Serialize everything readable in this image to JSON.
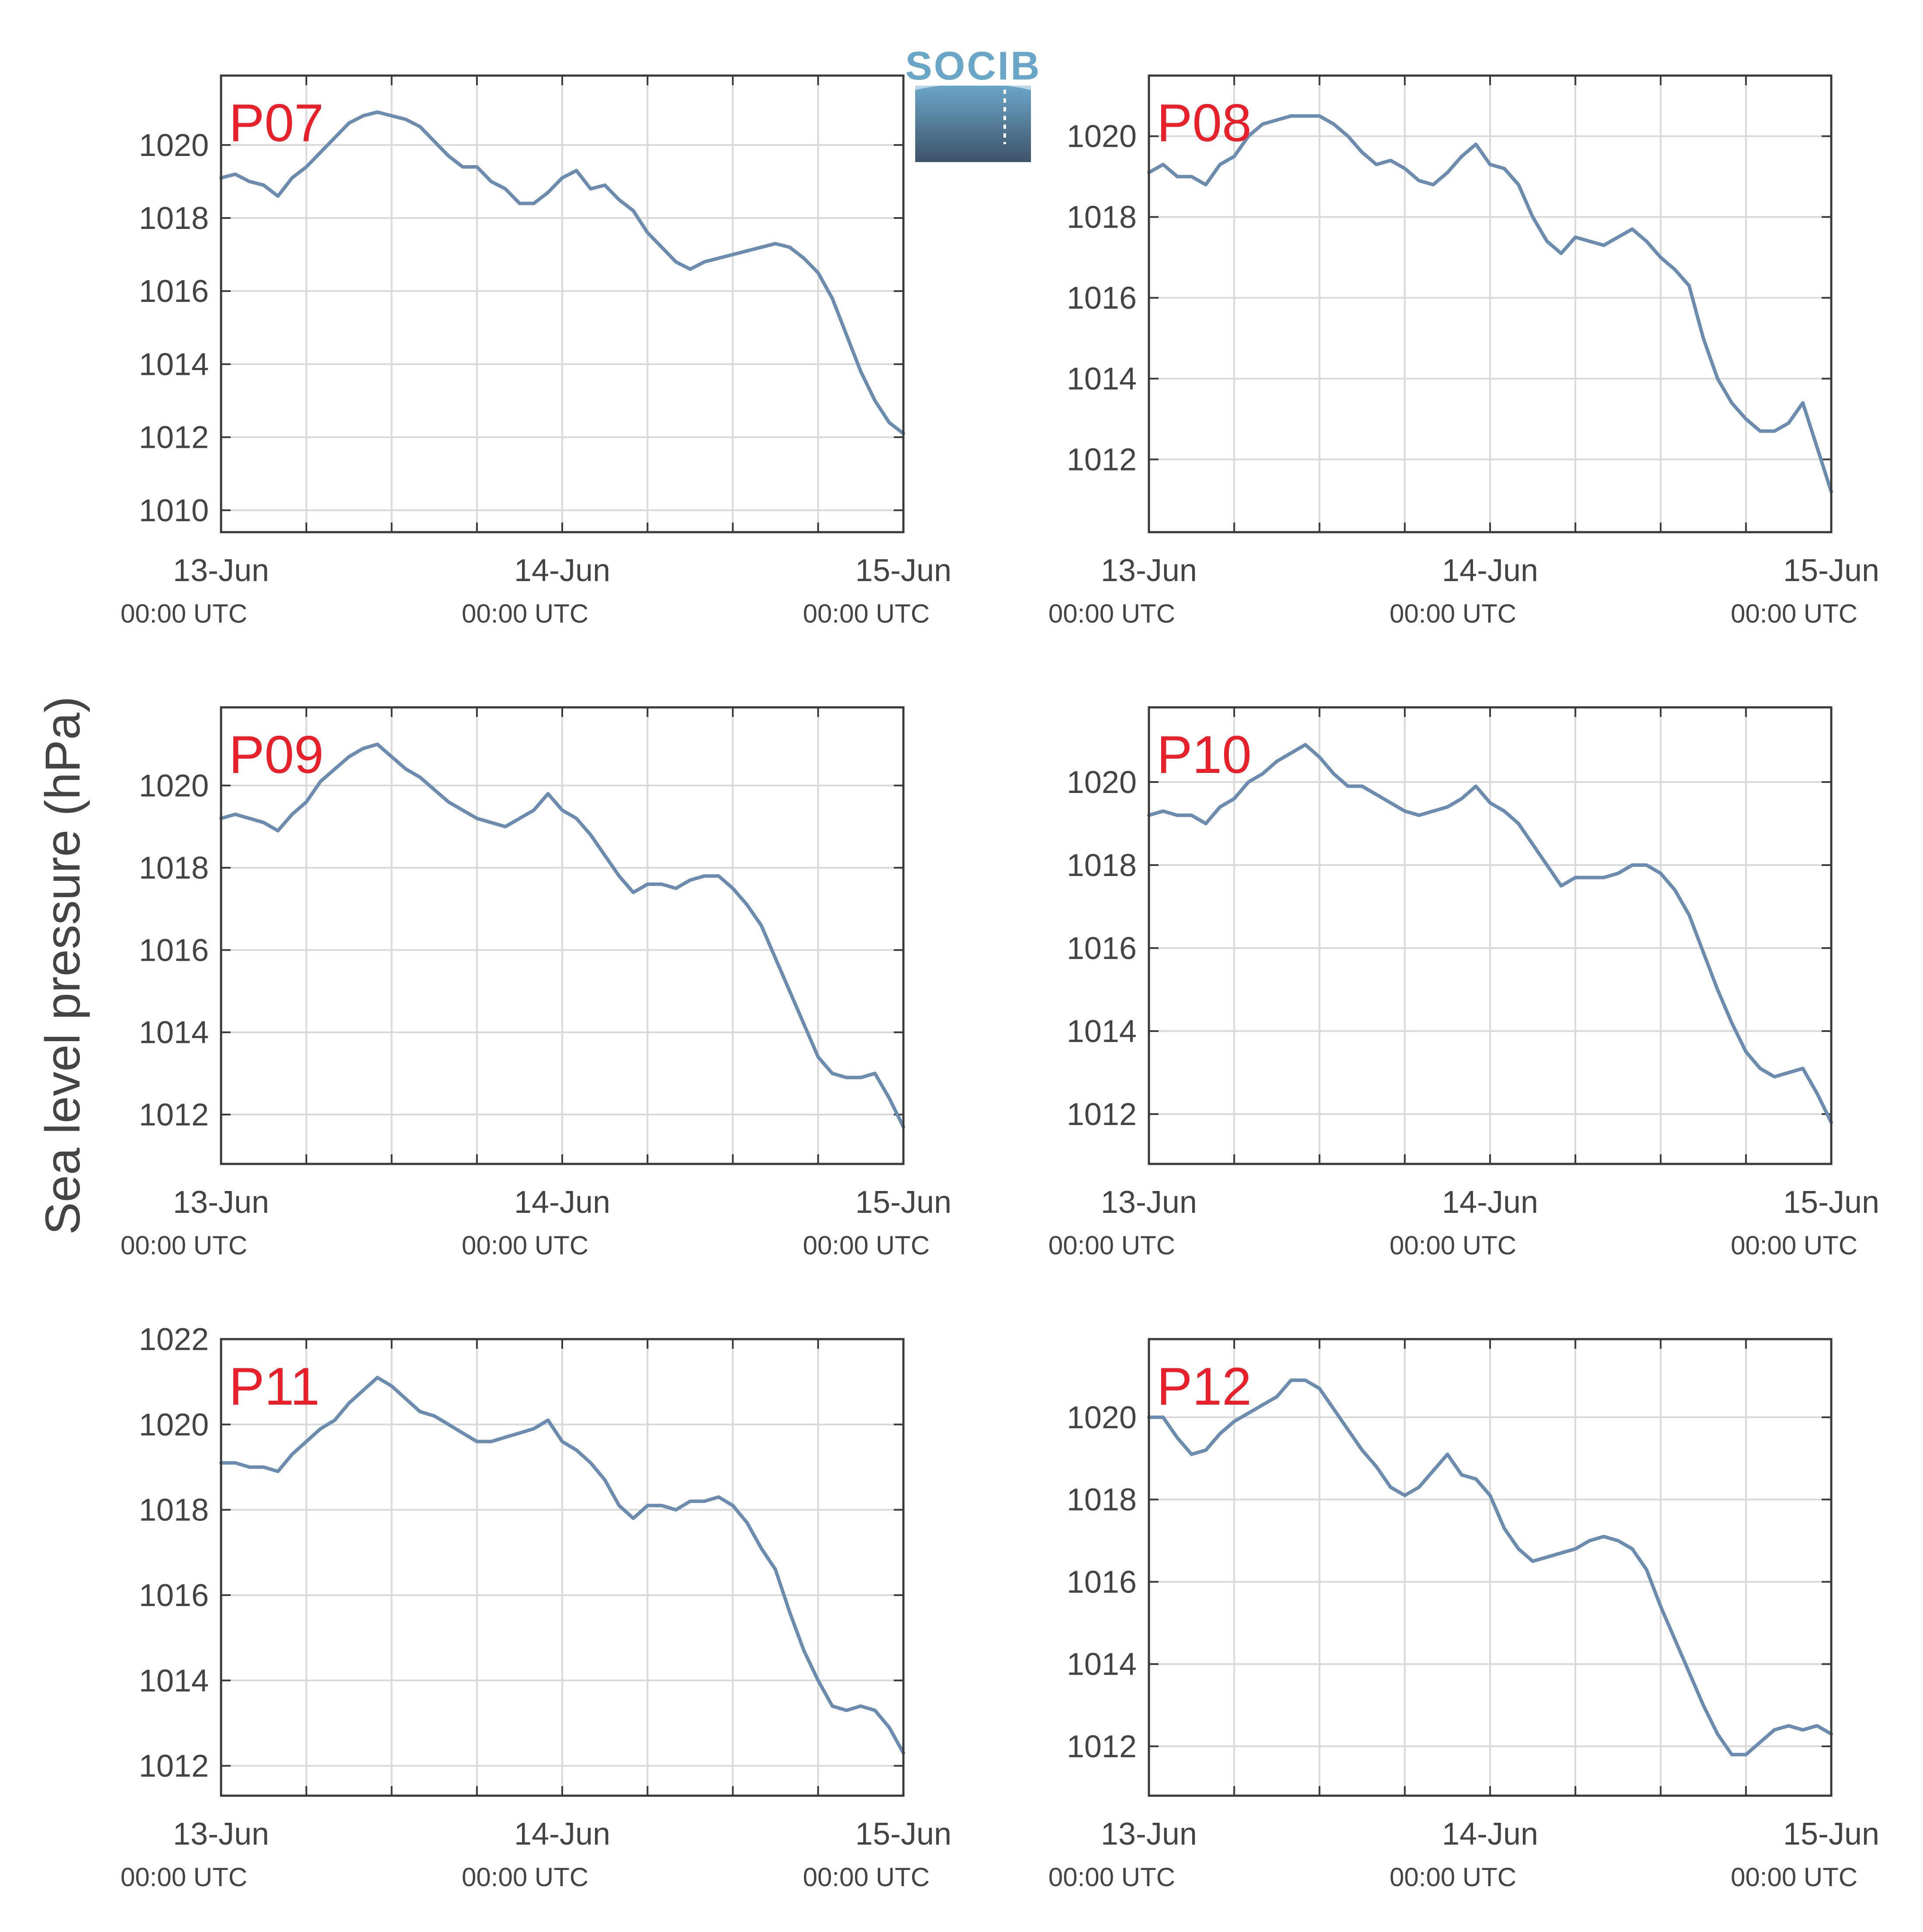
{
  "figure": {
    "ylabel": "Sea level pressure (hPa)",
    "logo_text": "SOCIB",
    "colors": {
      "line": "#6b8caf",
      "panel_label": "#e8202a",
      "axis": "#3a3a3a",
      "grid": "#d9d9d9",
      "text": "#444444",
      "logo_top": "#6aa6c8",
      "logo_bottom": "#3f5369"
    }
  },
  "chart_data": [
    {
      "type": "line",
      "label": "P07",
      "x_ticks": [
        {
          "date": "13-Jun",
          "time": "00:00 UTC"
        },
        {
          "date": "14-Jun",
          "time": "00:00 UTC"
        },
        {
          "date": "15-Jun",
          "time": "00:00 UTC"
        }
      ],
      "x_hours_range": [
        0,
        48
      ],
      "ylim": [
        1009.4,
        1021.9
      ],
      "yticks": [
        1010,
        1012,
        1014,
        1016,
        1018,
        1020
      ],
      "grid": true,
      "series": [
        {
          "x": [
            0,
            1,
            2,
            3,
            4,
            5,
            6,
            7,
            8,
            9,
            10,
            11,
            12,
            13,
            14,
            15,
            16,
            17,
            18,
            19,
            20,
            21,
            22,
            23,
            24,
            25,
            26,
            27,
            28,
            29,
            30,
            31,
            32,
            33,
            34,
            35,
            36,
            37,
            38,
            39,
            40,
            41,
            42,
            43,
            44,
            45,
            46,
            47,
            48
          ],
          "y": [
            1019.1,
            1019.2,
            1019.0,
            1018.9,
            1018.6,
            1019.1,
            1019.4,
            1019.8,
            1020.2,
            1020.6,
            1020.8,
            1020.9,
            1020.8,
            1020.7,
            1020.5,
            1020.1,
            1019.7,
            1019.4,
            1019.4,
            1019.0,
            1018.8,
            1018.4,
            1018.4,
            1018.7,
            1019.1,
            1019.3,
            1018.8,
            1018.9,
            1018.5,
            1018.2,
            1017.6,
            1017.2,
            1016.8,
            1016.6,
            1016.8,
            1016.9,
            1017.0,
            1017.1,
            1017.2,
            1017.3,
            1017.2,
            1016.9,
            1016.5,
            1015.8,
            1014.8,
            1013.8,
            1013.0,
            1012.4,
            1012.1
          ]
        }
      ]
    },
    {
      "type": "line",
      "label": "P08",
      "x_ticks": [
        {
          "date": "13-Jun",
          "time": "00:00 UTC"
        },
        {
          "date": "14-Jun",
          "time": "00:00 UTC"
        },
        {
          "date": "15-Jun",
          "time": "00:00 UTC"
        }
      ],
      "x_hours_range": [
        0,
        48
      ],
      "ylim": [
        1010.2,
        1021.5
      ],
      "yticks": [
        1012,
        1014,
        1016,
        1018,
        1020
      ],
      "grid": true,
      "series": [
        {
          "x": [
            0,
            1,
            2,
            3,
            4,
            5,
            6,
            7,
            8,
            9,
            10,
            11,
            12,
            13,
            14,
            15,
            16,
            17,
            18,
            19,
            20,
            21,
            22,
            23,
            24,
            25,
            26,
            27,
            28,
            29,
            30,
            31,
            32,
            33,
            34,
            35,
            36,
            37,
            38,
            39,
            40,
            41,
            42,
            43,
            44,
            45,
            46,
            47,
            48
          ],
          "y": [
            1019.1,
            1019.3,
            1019.0,
            1019.0,
            1018.8,
            1019.3,
            1019.5,
            1020.0,
            1020.3,
            1020.4,
            1020.5,
            1020.5,
            1020.5,
            1020.3,
            1020.0,
            1019.6,
            1019.3,
            1019.4,
            1019.2,
            1018.9,
            1018.8,
            1019.1,
            1019.5,
            1019.8,
            1019.3,
            1019.2,
            1018.8,
            1018.0,
            1017.4,
            1017.1,
            1017.5,
            1017.4,
            1017.3,
            1017.5,
            1017.7,
            1017.4,
            1017.0,
            1016.7,
            1016.3,
            1015.0,
            1014.0,
            1013.4,
            1013.0,
            1012.7,
            1012.7,
            1012.9,
            1013.4,
            1012.3,
            1011.2
          ]
        }
      ]
    },
    {
      "type": "line",
      "label": "P09",
      "x_ticks": [
        {
          "date": "13-Jun",
          "time": "00:00 UTC"
        },
        {
          "date": "14-Jun",
          "time": "00:00 UTC"
        },
        {
          "date": "15-Jun",
          "time": "00:00 UTC"
        }
      ],
      "x_hours_range": [
        0,
        48
      ],
      "ylim": [
        1010.8,
        1021.9
      ],
      "yticks": [
        1012,
        1014,
        1016,
        1018,
        1020
      ],
      "grid": true,
      "series": [
        {
          "x": [
            0,
            1,
            2,
            3,
            4,
            5,
            6,
            7,
            8,
            9,
            10,
            11,
            12,
            13,
            14,
            15,
            16,
            17,
            18,
            19,
            20,
            21,
            22,
            23,
            24,
            25,
            26,
            27,
            28,
            29,
            30,
            31,
            32,
            33,
            34,
            35,
            36,
            37,
            38,
            39,
            40,
            41,
            42,
            43,
            44,
            45,
            46,
            47,
            48
          ],
          "y": [
            1019.2,
            1019.3,
            1019.2,
            1019.1,
            1018.9,
            1019.3,
            1019.6,
            1020.1,
            1020.4,
            1020.7,
            1020.9,
            1021.0,
            1020.7,
            1020.4,
            1020.2,
            1019.9,
            1019.6,
            1019.4,
            1019.2,
            1019.1,
            1019.0,
            1019.2,
            1019.4,
            1019.8,
            1019.4,
            1019.2,
            1018.8,
            1018.3,
            1017.8,
            1017.4,
            1017.6,
            1017.6,
            1017.5,
            1017.7,
            1017.8,
            1017.8,
            1017.5,
            1017.1,
            1016.6,
            1015.8,
            1015.0,
            1014.2,
            1013.4,
            1013.0,
            1012.9,
            1012.9,
            1013.0,
            1012.4,
            1011.7
          ]
        }
      ]
    },
    {
      "type": "line",
      "label": "P10",
      "x_ticks": [
        {
          "date": "13-Jun",
          "time": "00:00 UTC"
        },
        {
          "date": "14-Jun",
          "time": "00:00 UTC"
        },
        {
          "date": "15-Jun",
          "time": "00:00 UTC"
        }
      ],
      "x_hours_range": [
        0,
        48
      ],
      "ylim": [
        1010.8,
        1021.8
      ],
      "yticks": [
        1012,
        1014,
        1016,
        1018,
        1020
      ],
      "grid": true,
      "series": [
        {
          "x": [
            0,
            1,
            2,
            3,
            4,
            5,
            6,
            7,
            8,
            9,
            10,
            11,
            12,
            13,
            14,
            15,
            16,
            17,
            18,
            19,
            20,
            21,
            22,
            23,
            24,
            25,
            26,
            27,
            28,
            29,
            30,
            31,
            32,
            33,
            34,
            35,
            36,
            37,
            38,
            39,
            40,
            41,
            42,
            43,
            44,
            45,
            46,
            47,
            48
          ],
          "y": [
            1019.2,
            1019.3,
            1019.2,
            1019.2,
            1019.0,
            1019.4,
            1019.6,
            1020.0,
            1020.2,
            1020.5,
            1020.7,
            1020.9,
            1020.6,
            1020.2,
            1019.9,
            1019.9,
            1019.7,
            1019.5,
            1019.3,
            1019.2,
            1019.3,
            1019.4,
            1019.6,
            1019.9,
            1019.5,
            1019.3,
            1019.0,
            1018.5,
            1018.0,
            1017.5,
            1017.7,
            1017.7,
            1017.7,
            1017.8,
            1018.0,
            1018.0,
            1017.8,
            1017.4,
            1016.8,
            1015.9,
            1015.0,
            1014.2,
            1013.5,
            1013.1,
            1012.9,
            1013.0,
            1013.1,
            1012.5,
            1011.8
          ]
        }
      ]
    },
    {
      "type": "line",
      "label": "P11",
      "x_ticks": [
        {
          "date": "13-Jun",
          "time": "00:00 UTC"
        },
        {
          "date": "14-Jun",
          "time": "00:00 UTC"
        },
        {
          "date": "15-Jun",
          "time": "00:00 UTC"
        }
      ],
      "x_hours_range": [
        0,
        48
      ],
      "ylim": [
        1011.3,
        1022.0
      ],
      "yticks": [
        1012,
        1014,
        1016,
        1018,
        1020,
        1022
      ],
      "grid": true,
      "series": [
        {
          "x": [
            0,
            1,
            2,
            3,
            4,
            5,
            6,
            7,
            8,
            9,
            10,
            11,
            12,
            13,
            14,
            15,
            16,
            17,
            18,
            19,
            20,
            21,
            22,
            23,
            24,
            25,
            26,
            27,
            28,
            29,
            30,
            31,
            32,
            33,
            34,
            35,
            36,
            37,
            38,
            39,
            40,
            41,
            42,
            43,
            44,
            45,
            46,
            47,
            48
          ],
          "y": [
            1019.1,
            1019.1,
            1019.0,
            1019.0,
            1018.9,
            1019.3,
            1019.6,
            1019.9,
            1020.1,
            1020.5,
            1020.8,
            1021.1,
            1020.9,
            1020.6,
            1020.3,
            1020.2,
            1020.0,
            1019.8,
            1019.6,
            1019.6,
            1019.7,
            1019.8,
            1019.9,
            1020.1,
            1019.6,
            1019.4,
            1019.1,
            1018.7,
            1018.1,
            1017.8,
            1018.1,
            1018.1,
            1018.0,
            1018.2,
            1018.2,
            1018.3,
            1018.1,
            1017.7,
            1017.1,
            1016.6,
            1015.6,
            1014.7,
            1014.0,
            1013.4,
            1013.3,
            1013.4,
            1013.3,
            1012.9,
            1012.3
          ]
        }
      ]
    },
    {
      "type": "line",
      "label": "P12",
      "x_ticks": [
        {
          "date": "13-Jun",
          "time": "00:00 UTC"
        },
        {
          "date": "14-Jun",
          "time": "00:00 UTC"
        },
        {
          "date": "15-Jun",
          "time": "00:00 UTC"
        }
      ],
      "x_hours_range": [
        0,
        48
      ],
      "ylim": [
        1010.8,
        1021.9
      ],
      "yticks": [
        1012,
        1014,
        1016,
        1018,
        1020
      ],
      "grid": true,
      "series": [
        {
          "x": [
            0,
            1,
            2,
            3,
            4,
            5,
            6,
            7,
            8,
            9,
            10,
            11,
            12,
            13,
            14,
            15,
            16,
            17,
            18,
            19,
            20,
            21,
            22,
            23,
            24,
            25,
            26,
            27,
            28,
            29,
            30,
            31,
            32,
            33,
            34,
            35,
            36,
            37,
            38,
            39,
            40,
            41,
            42,
            43,
            44,
            45,
            46,
            47,
            48
          ],
          "y": [
            1020.0,
            1020.0,
            1019.5,
            1019.1,
            1019.2,
            1019.6,
            1019.9,
            1020.1,
            1020.3,
            1020.5,
            1020.9,
            1020.9,
            1020.7,
            1020.2,
            1019.7,
            1019.2,
            1018.8,
            1018.3,
            1018.1,
            1018.3,
            1018.7,
            1019.1,
            1018.6,
            1018.5,
            1018.1,
            1017.3,
            1016.8,
            1016.5,
            1016.6,
            1016.7,
            1016.8,
            1017.0,
            1017.1,
            1017.0,
            1016.8,
            1016.3,
            1015.4,
            1014.6,
            1013.8,
            1013.0,
            1012.3,
            1011.8,
            1011.8,
            1012.1,
            1012.4,
            1012.5,
            1012.4,
            1012.5,
            1012.3
          ]
        }
      ]
    }
  ]
}
